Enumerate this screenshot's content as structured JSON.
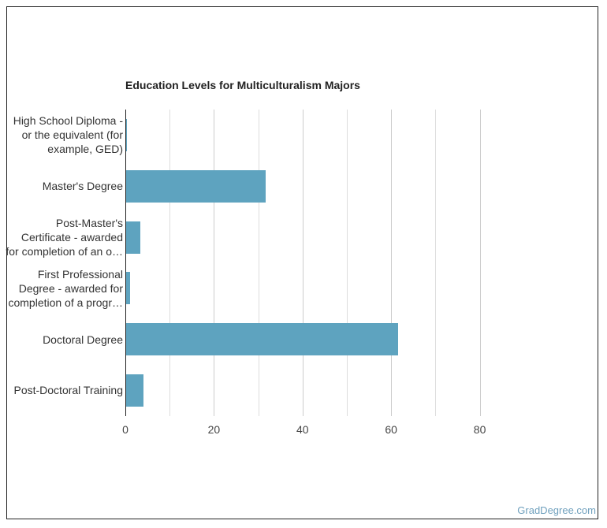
{
  "chart_data": {
    "type": "bar",
    "orientation": "horizontal",
    "title": "Education Levels for Multiculturalism Majors",
    "xlabel": "",
    "ylabel": "",
    "categories": [
      "High School Diploma - or the equivalent (for example, GED)",
      "Master's Degree",
      "Post-Master's Certificate - awarded for completion of an o…",
      "First Professional Degree - awarded for completion of a progr…",
      "Doctoral Degree",
      "Post-Doctoral Training"
    ],
    "values": [
      0.3,
      31.6,
      3.4,
      1.1,
      61.6,
      4.1
    ],
    "xlim": [
      0,
      100
    ],
    "xticks": [
      "0",
      "20",
      "40",
      "60",
      "80"
    ],
    "grid": true,
    "bar_color": "#5ea3bf"
  },
  "labels": [
    [
      "High School Diploma -",
      "or the equivalent (for",
      "example, GED)"
    ],
    [
      "Master's Degree"
    ],
    [
      "Post-Master's",
      "Certificate - awarded",
      "for completion of an o…"
    ],
    [
      "First Professional",
      "Degree - awarded for",
      "completion of a progr…"
    ],
    [
      "Doctoral Degree"
    ],
    [
      "Post-Doctoral Training"
    ]
  ],
  "credit": "GradDegree.com"
}
